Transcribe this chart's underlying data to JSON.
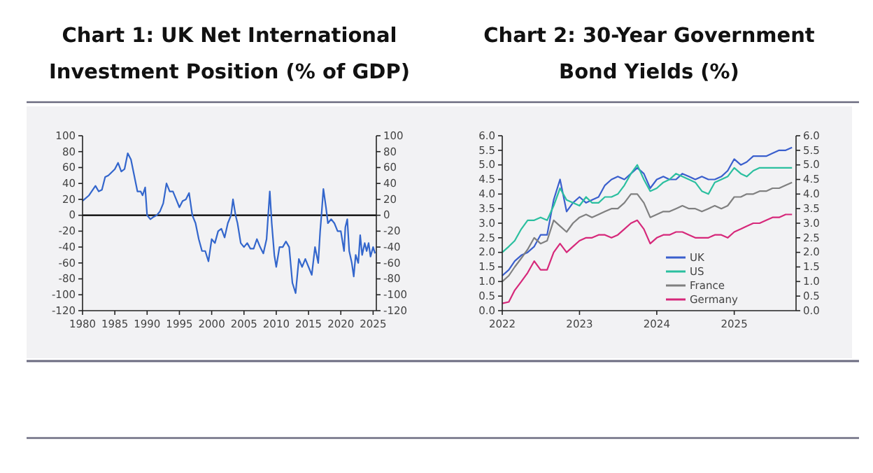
{
  "chart_data": [
    {
      "type": "line",
      "title": "Chart 1: UK Net International Investment Position (% of GDP)",
      "x": [
        1980,
        1981,
        1982,
        1982.5,
        1983,
        1983.5,
        1984,
        1985,
        1985.5,
        1986,
        1986.5,
        1987,
        1987.5,
        1988,
        1988.5,
        1989,
        1989.3,
        1989.7,
        1990,
        1990.5,
        1991,
        1991.5,
        1992,
        1992.5,
        1993,
        1993.5,
        1994,
        1994.5,
        1995,
        1995.5,
        1996,
        1996.5,
        1997,
        1997.5,
        1998,
        1998.5,
        1999,
        1999.5,
        2000,
        2000.5,
        2001,
        2001.5,
        2002,
        2002.5,
        2003,
        2003.3,
        2003.7,
        2004,
        2004.5,
        2005,
        2005.5,
        2006,
        2006.5,
        2007,
        2007.5,
        2008,
        2008.5,
        2009,
        2009.3,
        2009.7,
        2010,
        2010.5,
        2011,
        2011.5,
        2012,
        2012.5,
        2013,
        2013.5,
        2014,
        2014.5,
        2015,
        2015.5,
        2016,
        2016.5,
        2016.8,
        2017,
        2017.3,
        2017.7,
        2018,
        2018.5,
        2019,
        2019.5,
        2020,
        2020.5,
        2020.7,
        2021,
        2021.3,
        2021.7,
        2022,
        2022.3,
        2022.7,
        2023,
        2023.3,
        2023.7,
        2024,
        2024.3,
        2024.6,
        2025,
        2025.3
      ],
      "series": [
        {
          "color": "#3366cc",
          "values": [
            18,
            25,
            37,
            30,
            32,
            48,
            50,
            58,
            66,
            55,
            58,
            78,
            70,
            50,
            30,
            30,
            25,
            35,
            0,
            -5,
            -2,
            0,
            5,
            15,
            40,
            30,
            30,
            20,
            10,
            18,
            20,
            28,
            0,
            -10,
            -30,
            -45,
            -45,
            -58,
            -30,
            -35,
            -20,
            -17,
            -28,
            -10,
            0,
            20,
            0,
            -10,
            -35,
            -40,
            -35,
            -42,
            -42,
            -30,
            -40,
            -48,
            -30,
            30,
            -10,
            -50,
            -65,
            -40,
            -40,
            -33,
            -40,
            -85,
            -98,
            -55,
            -65,
            -55,
            -65,
            -75,
            -40,
            -60,
            -20,
            0,
            33,
            10,
            -10,
            -5,
            -10,
            -20,
            -20,
            -45,
            -15,
            -5,
            -45,
            -60,
            -77,
            -50,
            -60,
            -25,
            -50,
            -35,
            -45,
            -35,
            -52,
            -40,
            -48
          ]
        }
      ],
      "xlim": [
        1980,
        2025.5
      ],
      "xticks": [
        1980,
        1985,
        1990,
        1995,
        2000,
        2005,
        2010,
        2015,
        2020,
        2025
      ],
      "ylim": [
        -120,
        100
      ],
      "yticks": [
        -120,
        -100,
        -80,
        -60,
        -40,
        -20,
        0,
        20,
        40,
        60,
        80,
        100
      ],
      "y2lim": [
        -120,
        100
      ],
      "y2ticks": [
        -120,
        -100,
        -80,
        -60,
        -40,
        -20,
        0,
        20,
        40,
        60,
        80,
        100
      ],
      "ref_lines": [
        {
          "axis": "y",
          "value": 0,
          "color": "#000000"
        }
      ],
      "grid": false,
      "legend": false
    },
    {
      "type": "line",
      "title": "Chart 2: 30-Year Government Bond Yields (%)",
      "x": [
        "2022-01",
        "2022-02",
        "2022-03",
        "2022-04",
        "2022-05",
        "2022-06",
        "2022-07",
        "2022-08",
        "2022-09",
        "2022-10",
        "2022-11",
        "2022-12",
        "2023-01",
        "2023-02",
        "2023-03",
        "2023-04",
        "2023-05",
        "2023-06",
        "2023-07",
        "2023-08",
        "2023-09",
        "2023-10",
        "2023-11",
        "2023-12",
        "2024-01",
        "2024-02",
        "2024-03",
        "2024-04",
        "2024-05",
        "2024-06",
        "2024-07",
        "2024-08",
        "2024-09",
        "2024-10",
        "2024-11",
        "2024-12",
        "2025-01",
        "2025-02",
        "2025-03",
        "2025-04",
        "2025-05",
        "2025-06",
        "2025-07",
        "2025-08",
        "2025-09",
        "2025-10"
      ],
      "series": [
        {
          "name": "UK",
          "color": "#3a5fcd",
          "values": [
            1.2,
            1.4,
            1.7,
            1.9,
            2.0,
            2.2,
            2.6,
            2.6,
            3.8,
            4.5,
            3.4,
            3.7,
            3.9,
            3.7,
            3.8,
            3.9,
            4.3,
            4.5,
            4.6,
            4.5,
            4.7,
            4.9,
            4.7,
            4.2,
            4.5,
            4.6,
            4.5,
            4.5,
            4.7,
            4.6,
            4.5,
            4.6,
            4.5,
            4.5,
            4.6,
            4.8,
            5.2,
            5.0,
            5.1,
            5.3,
            5.3,
            5.3,
            5.4,
            5.5,
            5.5,
            5.6
          ]
        },
        {
          "name": "US",
          "color": "#2bbf9f",
          "values": [
            2.0,
            2.2,
            2.4,
            2.8,
            3.1,
            3.1,
            3.2,
            3.1,
            3.6,
            4.2,
            3.8,
            3.7,
            3.6,
            3.9,
            3.7,
            3.7,
            3.9,
            3.9,
            4.0,
            4.3,
            4.7,
            5.0,
            4.5,
            4.1,
            4.2,
            4.4,
            4.5,
            4.7,
            4.6,
            4.5,
            4.4,
            4.1,
            4.0,
            4.4,
            4.5,
            4.6,
            4.9,
            4.7,
            4.6,
            4.8,
            4.9,
            4.9,
            4.9,
            4.9,
            4.9,
            4.9
          ]
        },
        {
          "name": "France",
          "color": "#808080",
          "values": [
            1.0,
            1.2,
            1.5,
            1.8,
            2.1,
            2.5,
            2.3,
            2.4,
            3.1,
            2.9,
            2.7,
            3.0,
            3.2,
            3.3,
            3.2,
            3.3,
            3.4,
            3.5,
            3.5,
            3.7,
            4.0,
            4.0,
            3.7,
            3.2,
            3.3,
            3.4,
            3.4,
            3.5,
            3.6,
            3.5,
            3.5,
            3.4,
            3.5,
            3.6,
            3.5,
            3.6,
            3.9,
            3.9,
            4.0,
            4.0,
            4.1,
            4.1,
            4.2,
            4.2,
            4.3,
            4.4
          ]
        },
        {
          "name": "Germany",
          "color": "#d6287a",
          "values": [
            0.25,
            0.3,
            0.7,
            1.0,
            1.3,
            1.7,
            1.4,
            1.4,
            2.0,
            2.3,
            2.0,
            2.2,
            2.4,
            2.5,
            2.5,
            2.6,
            2.6,
            2.5,
            2.6,
            2.8,
            3.0,
            3.1,
            2.8,
            2.3,
            2.5,
            2.6,
            2.6,
            2.7,
            2.7,
            2.6,
            2.5,
            2.5,
            2.5,
            2.6,
            2.6,
            2.5,
            2.7,
            2.8,
            2.9,
            3.0,
            3.0,
            3.1,
            3.2,
            3.2,
            3.3,
            3.3
          ]
        }
      ],
      "xlim": [
        "2022-01-01",
        "2025-10-20"
      ],
      "xticks": [
        "2022",
        "2023",
        "2024",
        "2025"
      ],
      "ylim": [
        0,
        6
      ],
      "yticks": [
        {
          "value": 0,
          "label": "0.0"
        },
        {
          "value": 0.5,
          "label": "0.5"
        },
        {
          "value": 1,
          "label": "1.0"
        },
        {
          "value": 1.5,
          "label": "1.5"
        },
        {
          "value": 2,
          "label": "2.0"
        },
        {
          "value": 2.5,
          "label": "2.5"
        },
        {
          "value": 3,
          "label": "3.0"
        },
        {
          "value": 3.5,
          "label": "3.5"
        },
        {
          "value": 4,
          "label": "4.0"
        },
        {
          "value": 4.5,
          "label": "4.5"
        },
        {
          "value": 5,
          "label": "5.0"
        },
        {
          "value": 5.5,
          "label": "5.5"
        },
        {
          "value": 6,
          "label": "6.0"
        }
      ],
      "y2lim": [
        0,
        6
      ],
      "y2ticks": [
        {
          "value": 0,
          "label": "0.0"
        },
        {
          "value": 0.5,
          "label": "0.5"
        },
        {
          "value": 1,
          "label": "1.0"
        },
        {
          "value": 1.5,
          "label": "1.5"
        },
        {
          "value": 2,
          "label": "2.0"
        },
        {
          "value": 2.5,
          "label": "2.5"
        },
        {
          "value": 3,
          "label": "3.0"
        },
        {
          "value": 3.5,
          "label": "3.5"
        },
        {
          "value": 4,
          "label": "4.0"
        },
        {
          "value": 4.5,
          "label": "4.5"
        },
        {
          "value": 5,
          "label": "5.0"
        },
        {
          "value": 5.5,
          "label": "5.5"
        },
        {
          "value": 6,
          "label": "6.0"
        }
      ],
      "grid": false,
      "legend": "bottom"
    }
  ]
}
